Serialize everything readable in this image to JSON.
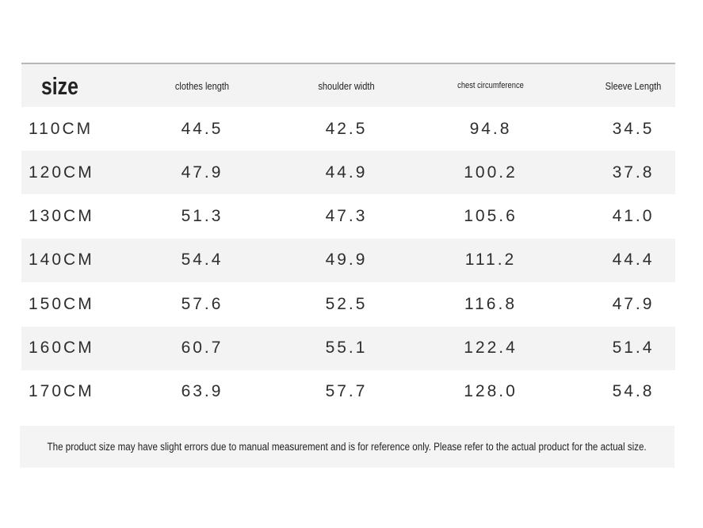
{
  "table": {
    "header": [
      "size",
      "clothes length",
      "shoulder width",
      "chest circumference",
      "Sleeve Length"
    ],
    "rows": [
      [
        "110CM",
        "44.5",
        "42.5",
        "94.8",
        "34.5"
      ],
      [
        "120CM",
        "47.9",
        "44.9",
        "100.2",
        "37.8"
      ],
      [
        "130CM",
        "51.3",
        "47.3",
        "105.6",
        "41.0"
      ],
      [
        "140CM",
        "54.4",
        "49.9",
        "111.2",
        "44.4"
      ],
      [
        "150CM",
        "57.6",
        "52.5",
        "116.8",
        "47.9"
      ],
      [
        "160CM",
        "60.7",
        "55.1",
        "122.4",
        "51.4"
      ],
      [
        "170CM",
        "63.9",
        "57.7",
        "128.0",
        "54.8"
      ]
    ]
  },
  "note": "The product size may have slight errors due to manual measurement and is for reference only. Please refer to the actual product for the actual size."
}
